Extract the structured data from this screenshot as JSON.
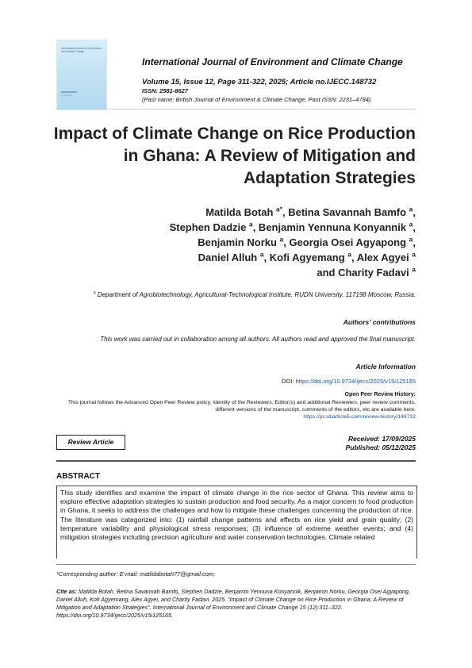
{
  "journal": {
    "cover_title": "International Journal of Environment and Climate Change",
    "name": "International Journal of Environment and Climate Change",
    "volume_line": "Volume 15, Issue 12, Page 311-322, 2025; Article no.IJECC.148732",
    "issn": "ISSN: 2581-8627",
    "past_name": "(Past name: British Journal of Environment & Climate Change, Past ISSN: 2231–4784)"
  },
  "article": {
    "title": "Impact of Climate Change on Rice Production in Ghana: A Review of Mitigation and Adaptation Strategies",
    "authors_html": "Matilda Botah <sup>a*</sup>, Betina Savannah Bamfo <sup>a</sup>,<br>Stephen Dadzie <sup>a</sup>, Benjamin Yennuna Konyannik <sup>a</sup>,<br>Benjamin Norku <sup>a</sup>, Georgia Osei Agyapong <sup>a</sup>,<br>Daniel Alluh <sup>a</sup>, Kofi Agyemang <sup>a</sup>, Alex Agyei <sup>a</sup><br>and Charity Fadavi <sup>a</sup>",
    "affiliation_marker": "a",
    "affiliation": "Department of Agrobiotechnology, Agricultural-Technological Institute, RUDN University, 117198 Moscow, Russia.",
    "contrib_heading": "Authors’ contributions",
    "contrib_text": "This work was carried out in collaboration among all authors. All authors read and approved the final manuscript.",
    "info_heading": "Article Information",
    "doi_label": "DOI:",
    "doi_link": "https://doi.org/10.9734/ijecc/2025/v15i125165",
    "opr_heading": "Open Peer Review History:",
    "opr_text": "This journal follows the Advanced Open Peer Review policy. Identity of the Reviewers, Editor(s) and additional Reviewers, peer review comments, different versions of the manuscript, comments of the editors, etc are available here:",
    "opr_link": "https://pr.sdiarticle5.com/review-history/148732",
    "type_label": "Review Article",
    "received": "Received: 17/09/2025",
    "published": "Published: 05/12/2025",
    "abstract_heading": "ABSTRACT",
    "abstract_text": "This study identifies and examine the impact of climate change in the rice sector of Ghana. This review aims to explore effective adaptation strategies to sustain production and food security. As a major concern to food production in Ghana, it seeks to address the challenges and how to mitigate these challenges concerning the production of rice. The literature was categorized into: (1) rainfall change patterns and effects on rice yield and grain quality; (2) temperature variability and physiological stress responses; (3) influence of extreme weather events; and (4) mitigation strategies including precision agriculture and water conservation technologies. Climate related",
    "corresponding": "*Corresponding author: E-mail: matildabotah77@gmail.com;",
    "cite_label": "Cite as:",
    "cite_text": "Matilda Botah, Betina Savannah Bamfo, Stephen Dadzie, Benjamin Yennuna Konyannik, Benjamin Norku, Georgia Osei Agyapong, Daniel Alluh, Kofi Agyemang, Alex Agyei, and Charity Fadavi. 2025. “Impact of Climate Change on Rice Production in Ghana: A Review of Mitigation and Adaptation Strategies”. International Journal of Environment and Climate Change 15 (12):311–322. https://doi.org/10.9734/ijecc/2025/v15i125165."
  }
}
